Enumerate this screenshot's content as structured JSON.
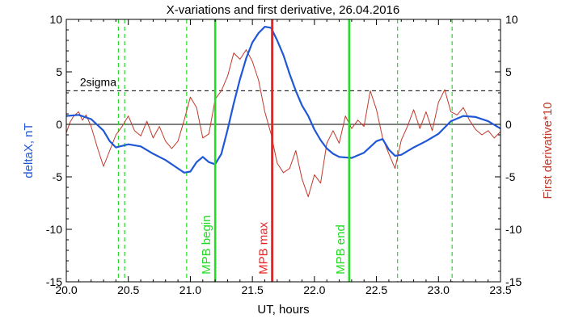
{
  "chart_data": {
    "type": "line",
    "title": "X-variations and first derivative, 26.04.2016",
    "xlabel": "UT, hours",
    "ylabel_left": "deltaX, nT",
    "ylabel_right": "First derivative*10",
    "xlim": [
      20.0,
      23.5
    ],
    "ylim": [
      -15,
      10
    ],
    "x_ticks": [
      "20.0",
      "20.5",
      "21.0",
      "21.5",
      "22.0",
      "22.5",
      "23.0",
      "23.5"
    ],
    "y_ticks_left": [
      "10",
      "5",
      "0",
      "-5",
      "-10",
      "-15"
    ],
    "y_ticks_right": [
      "10",
      "5",
      "0",
      "-5",
      "-10",
      "-15"
    ],
    "threshold": {
      "label": "2sigma",
      "value": 3.2
    },
    "colors": {
      "deltaX": "#1f57d6",
      "derivative": "#c0392b",
      "mpb_boundary": "#22dd22",
      "mpb_max": "#ee2222",
      "axes": "#000000"
    },
    "dashed_lines_x": [
      20.42,
      20.47,
      20.97,
      22.67,
      23.11
    ],
    "vertical_markers": [
      {
        "label": "MPB begin",
        "x": 21.2,
        "color": "#22dd22"
      },
      {
        "label": "MPB max",
        "x": 21.66,
        "color": "#ee2222"
      },
      {
        "label": "MPB end",
        "x": 22.28,
        "color": "#22dd22"
      }
    ],
    "series": [
      {
        "name": "deltaX",
        "axis": "left",
        "color": "#1f57d6",
        "x": [
          20.0,
          20.1,
          20.2,
          20.3,
          20.35,
          20.4,
          20.5,
          20.6,
          20.7,
          20.8,
          20.9,
          20.95,
          21.0,
          21.05,
          21.1,
          21.15,
          21.2,
          21.25,
          21.3,
          21.35,
          21.4,
          21.45,
          21.5,
          21.55,
          21.6,
          21.65,
          21.7,
          21.75,
          21.8,
          21.85,
          21.9,
          21.95,
          22.0,
          22.05,
          22.1,
          22.15,
          22.2,
          22.3,
          22.4,
          22.5,
          22.55,
          22.6,
          22.65,
          22.7,
          22.8,
          22.9,
          23.0,
          23.05,
          23.1,
          23.2,
          23.3,
          23.4,
          23.5
        ],
        "values": [
          0.8,
          0.9,
          0.5,
          -0.6,
          -1.6,
          -2.2,
          -1.9,
          -2.1,
          -2.8,
          -3.4,
          -4.2,
          -4.6,
          -4.5,
          -3.6,
          -3.1,
          -3.6,
          -3.8,
          -2.8,
          -0.5,
          2.0,
          4.3,
          6.3,
          7.8,
          8.7,
          9.3,
          9.2,
          8.0,
          6.6,
          4.8,
          3.2,
          1.8,
          0.8,
          -0.5,
          -1.5,
          -2.3,
          -2.8,
          -3.1,
          -3.2,
          -2.7,
          -1.6,
          -1.4,
          -2.4,
          -3.0,
          -2.9,
          -2.2,
          -1.6,
          -0.9,
          -0.3,
          0.3,
          0.8,
          0.7,
          0.3,
          -0.4
        ]
      },
      {
        "name": "First derivative*10",
        "axis": "right",
        "color": "#c0392b",
        "x": [
          20.0,
          20.03,
          20.06,
          20.1,
          20.13,
          20.16,
          20.2,
          20.25,
          20.3,
          20.35,
          20.4,
          20.45,
          20.5,
          20.55,
          20.6,
          20.65,
          20.7,
          20.75,
          20.8,
          20.85,
          20.9,
          20.95,
          21.0,
          21.05,
          21.1,
          21.15,
          21.2,
          21.25,
          21.3,
          21.35,
          21.4,
          21.45,
          21.5,
          21.55,
          21.6,
          21.65,
          21.7,
          21.75,
          21.8,
          21.85,
          21.9,
          21.95,
          22.0,
          22.05,
          22.1,
          22.15,
          22.2,
          22.25,
          22.3,
          22.35,
          22.4,
          22.45,
          22.5,
          22.55,
          22.6,
          22.65,
          22.7,
          22.75,
          22.8,
          22.85,
          22.9,
          22.95,
          23.0,
          23.05,
          23.1,
          23.15,
          23.2,
          23.25,
          23.3,
          23.35,
          23.4,
          23.45,
          23.5
        ],
        "values": [
          -0.8,
          0.2,
          0.8,
          1.2,
          0.4,
          0.9,
          -0.2,
          -2.2,
          -4.0,
          -2.5,
          -1.0,
          -0.2,
          0.8,
          -0.6,
          -1.1,
          0.3,
          -1.3,
          -0.2,
          -1.6,
          -2.3,
          -1.6,
          0.4,
          2.6,
          1.6,
          -1.3,
          -0.9,
          2.4,
          3.2,
          4.6,
          6.8,
          6.2,
          7.1,
          6.0,
          4.2,
          1.2,
          -0.9,
          -3.7,
          -4.6,
          -4.2,
          -2.5,
          -5.2,
          -6.9,
          -4.8,
          -5.6,
          -1.8,
          -0.6,
          -1.8,
          0.8,
          -0.4,
          0.4,
          -0.2,
          3.2,
          1.4,
          -1.3,
          -2.8,
          -4.2,
          -1.5,
          -0.2,
          1.4,
          -0.4,
          1.2,
          -0.6,
          2.1,
          3.3,
          1.2,
          0.9,
          1.6,
          0.4,
          -0.5,
          -1.0,
          -0.6,
          -1.3,
          -0.7
        ]
      }
    ]
  }
}
